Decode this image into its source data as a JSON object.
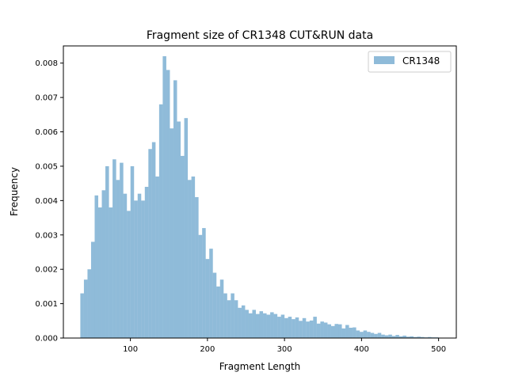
{
  "chart_data": {
    "type": "bar",
    "title": "Fragment size of CR1348 CUT&RUN data",
    "xlabel": "Fragment Length",
    "ylabel": "Frequency",
    "xlim": [
      13,
      523
    ],
    "ylim": [
      0,
      0.0085
    ],
    "x_ticks": [
      100,
      200,
      300,
      400,
      500
    ],
    "y_ticks": [
      0.0,
      0.001,
      0.002,
      0.003,
      0.004,
      0.005,
      0.006,
      0.007,
      0.008
    ],
    "legend": {
      "label": "CR1348",
      "position": "upper right"
    },
    "bar_color": "#1f77b4",
    "bar_alpha": 0.5,
    "bin_start": 35,
    "bin_width": 4.65,
    "values": [
      0.0013,
      0.0017,
      0.002,
      0.0028,
      0.00415,
      0.0038,
      0.0043,
      0.005,
      0.0038,
      0.0052,
      0.0046,
      0.0051,
      0.0042,
      0.0037,
      0.005,
      0.004,
      0.0042,
      0.004,
      0.0044,
      0.0055,
      0.0057,
      0.0047,
      0.0068,
      0.0082,
      0.0078,
      0.0061,
      0.0075,
      0.0063,
      0.0053,
      0.0064,
      0.0046,
      0.0047,
      0.0041,
      0.003,
      0.0032,
      0.0023,
      0.0026,
      0.0019,
      0.0015,
      0.0017,
      0.0013,
      0.0011,
      0.0013,
      0.0011,
      0.00088,
      0.00095,
      0.00082,
      0.00072,
      0.00082,
      0.0007,
      0.00078,
      0.00072,
      0.00068,
      0.00075,
      0.0007,
      0.00062,
      0.00068,
      0.00058,
      0.00062,
      0.00055,
      0.0006,
      0.0005,
      0.00058,
      0.00048,
      0.00051,
      0.00062,
      0.00042,
      0.00048,
      0.00045,
      0.0004,
      0.00035,
      0.00041,
      0.0004,
      0.00028,
      0.00038,
      0.0003,
      0.00031,
      0.00022,
      0.00018,
      0.00022,
      0.00018,
      0.00015,
      0.00012,
      0.00015,
      0.0001,
      8e-05,
      0.0001,
      6e-05,
      9e-05,
      5e-05,
      7e-05,
      4e-05,
      5e-05,
      3e-05,
      4e-05,
      3e-05,
      2e-05,
      3e-05,
      2e-05,
      2e-05
    ]
  }
}
